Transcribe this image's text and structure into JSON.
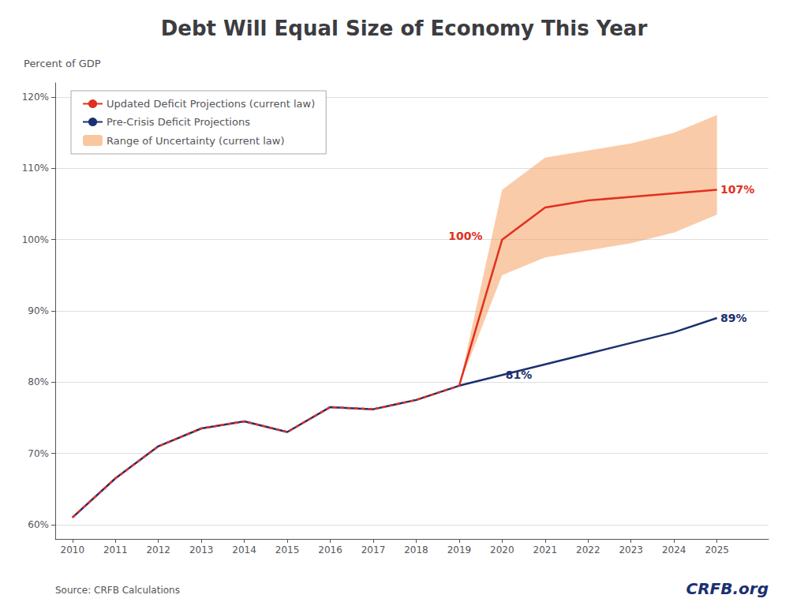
{
  "chart_data": {
    "type": "line",
    "title": "Debt Will Equal Size of Economy This Year",
    "y_label": "Percent of GDP",
    "source": "Source: CRFB Calculations",
    "credit": "CRFB.org",
    "xlim": [
      2009.6,
      2026.2
    ],
    "xticks": [
      2010,
      2011,
      2012,
      2013,
      2014,
      2015,
      2016,
      2017,
      2018,
      2019,
      2020,
      2021,
      2022,
      2023,
      2024,
      2025
    ],
    "ylim": [
      58,
      122
    ],
    "yticks": [
      {
        "value": 60,
        "label": "60%"
      },
      {
        "value": 70,
        "label": "70%"
      },
      {
        "value": 80,
        "label": "80%"
      },
      {
        "value": 90,
        "label": "90%"
      },
      {
        "value": 100,
        "label": "100%"
      },
      {
        "value": 110,
        "label": "110%"
      },
      {
        "value": 120,
        "label": "120%"
      }
    ],
    "grid": true,
    "legend": "upper left",
    "series": [
      {
        "type": "line",
        "color": "#e03020",
        "line_style": "dashed",
        "x": [
          2010,
          2011,
          2012,
          2013,
          2014,
          2015,
          2016,
          2017,
          2018,
          2019
        ],
        "values": [
          61.0,
          66.5,
          71.0,
          73.5,
          74.5,
          73.0,
          76.5,
          76.2,
          77.5,
          79.5
        ]
      },
      {
        "name": "Updated Deficit Projections (current law)",
        "type": "line",
        "color": "#e03020",
        "line_style": "solid",
        "x": [
          2019,
          2020,
          2021,
          2022,
          2023,
          2024,
          2025
        ],
        "values": [
          79.5,
          100.0,
          104.5,
          105.5,
          106.0,
          106.5,
          107.0
        ]
      },
      {
        "name": "Pre-Crisis Deficit Projections",
        "type": "line",
        "color": "#1a3070",
        "line_style": "solid",
        "x": [
          2010,
          2011,
          2012,
          2013,
          2014,
          2015,
          2016,
          2017,
          2018,
          2019,
          2020,
          2021,
          2022,
          2023,
          2024,
          2025
        ],
        "values": [
          61.0,
          66.5,
          71.0,
          73.5,
          74.5,
          73.0,
          76.5,
          76.2,
          77.5,
          79.5,
          81.0,
          82.5,
          84.0,
          85.5,
          87.0,
          89.0
        ]
      },
      {
        "name": "Range of Uncertainty (current law)",
        "type": "band",
        "color": "#f5a060",
        "x": [
          2019,
          2020,
          2021,
          2022,
          2023,
          2024,
          2025
        ],
        "upper": [
          79.5,
          107.0,
          111.5,
          112.5,
          113.5,
          115.0,
          117.5
        ],
        "lower": [
          79.5,
          95.0,
          97.5,
          98.5,
          99.5,
          101.0,
          103.5
        ]
      }
    ],
    "annotations": [
      {
        "text": "100%",
        "x": 2018.75,
        "y": 100.5,
        "color": "#e03020"
      },
      {
        "text": "81%",
        "x": 2020.08,
        "y": 81.0,
        "color": "#1a3070"
      },
      {
        "text": "107%",
        "x": 2025.08,
        "y": 107.0,
        "color": "#e03020"
      },
      {
        "text": "89%",
        "x": 2025.08,
        "y": 89.0,
        "color": "#1a3070"
      }
    ]
  }
}
